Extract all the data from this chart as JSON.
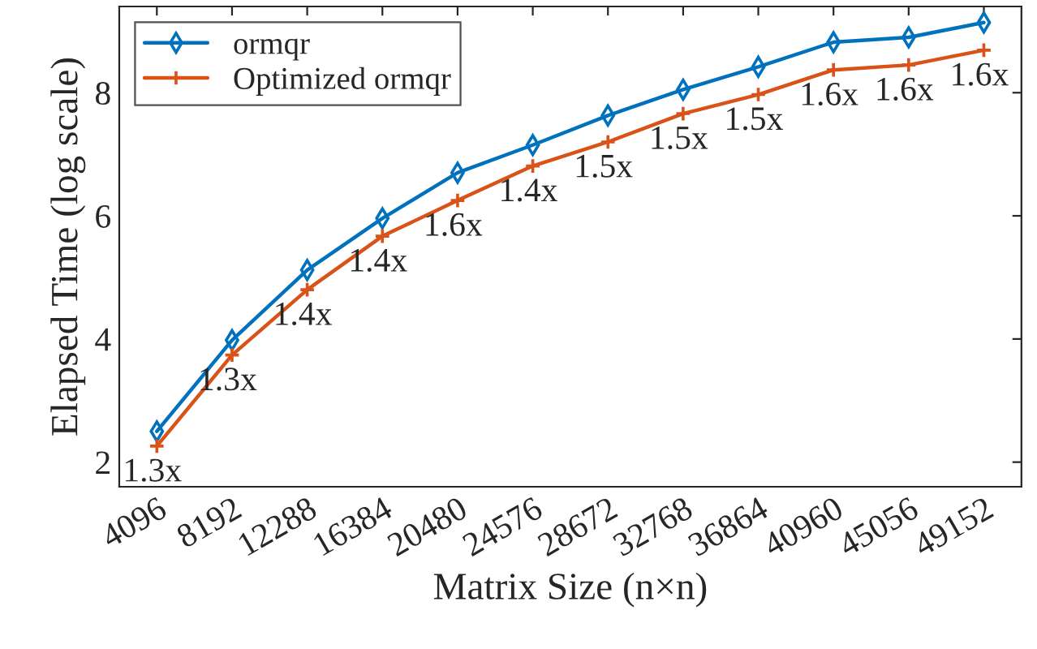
{
  "chart_data": {
    "type": "line",
    "xlabel": "Matrix Size (n×n)",
    "ylabel": "Elapsed Time (log scale)",
    "categories": [
      "4096",
      "8192",
      "12288",
      "16384",
      "20480",
      "24576",
      "28672",
      "32768",
      "36864",
      "40960",
      "45056",
      "49152"
    ],
    "series": [
      {
        "name": "ormqr",
        "color": "#0072bd",
        "marker": "diamond",
        "values": [
          2.5,
          3.98,
          5.12,
          5.96,
          6.7,
          7.15,
          7.63,
          8.05,
          8.42,
          8.82,
          8.9,
          9.14
        ]
      },
      {
        "name": "Optimized ormqr",
        "color": "#d95319",
        "marker": "cross",
        "values": [
          2.26,
          3.74,
          4.8,
          5.67,
          6.25,
          6.81,
          7.2,
          7.66,
          7.97,
          8.37,
          8.45,
          8.69
        ]
      }
    ],
    "ylim": [
      1.6,
      9.4
    ],
    "yticks": [
      2,
      4,
      6,
      8
    ],
    "legend": "top left",
    "grid": false,
    "line_style": "solid",
    "annotations": [
      {
        "text": "1.3x",
        "x": "4096",
        "y": 2.26
      },
      {
        "text": "1.3x",
        "x": "8192",
        "y": 3.74
      },
      {
        "text": "1.4x",
        "x": "12288",
        "y": 4.8
      },
      {
        "text": "1.4x",
        "x": "16384",
        "y": 5.67
      },
      {
        "text": "1.6x",
        "x": "20480",
        "y": 6.25
      },
      {
        "text": "1.4x",
        "x": "24576",
        "y": 6.81
      },
      {
        "text": "1.5x",
        "x": "28672",
        "y": 7.2
      },
      {
        "text": "1.5x",
        "x": "32768",
        "y": 7.66
      },
      {
        "text": "1.5x",
        "x": "36864",
        "y": 7.97
      },
      {
        "text": "1.6x",
        "x": "40960",
        "y": 8.37
      },
      {
        "text": "1.6x",
        "x": "45056",
        "y": 8.45
      },
      {
        "text": "1.6x",
        "x": "49152",
        "y": 8.69
      }
    ]
  }
}
